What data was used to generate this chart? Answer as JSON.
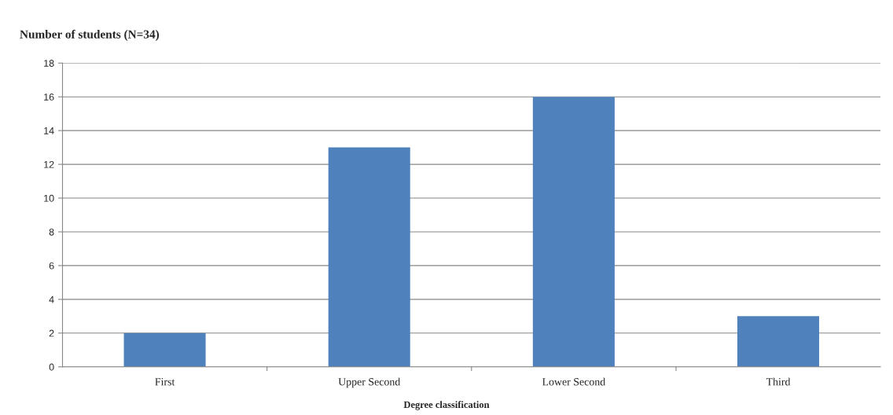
{
  "chart_data": {
    "type": "bar",
    "ylabel": "Number of students (N=34)",
    "xlabel": "Degree classification",
    "categories": [
      "First",
      "Upper Second",
      "Lower Second",
      "Third"
    ],
    "values": [
      2,
      13,
      16,
      3
    ],
    "color": "#4f81bd",
    "ylim": [
      0,
      18
    ],
    "yticks": [
      0,
      2,
      4,
      6,
      8,
      10,
      12,
      14,
      16,
      18
    ],
    "grid": "y",
    "legend": false
  }
}
